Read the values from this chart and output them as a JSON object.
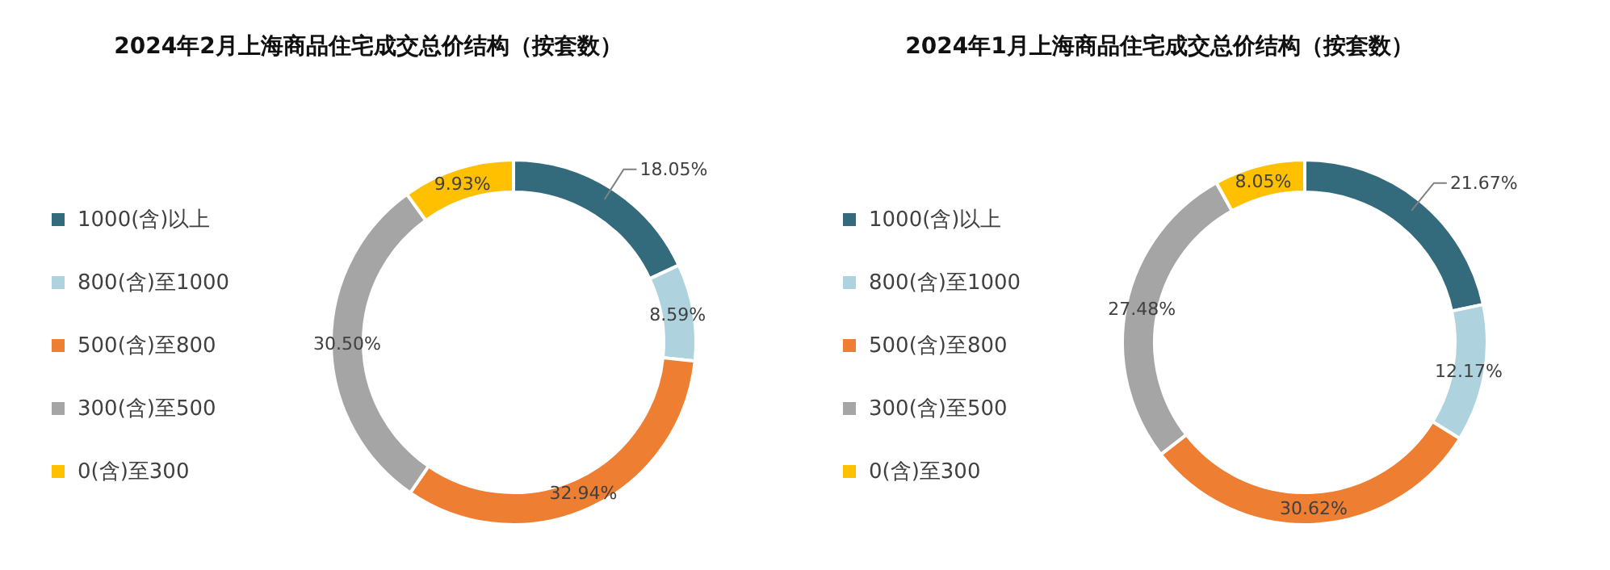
{
  "chart_data": [
    {
      "type": "donut",
      "title": "2024年2月上海商品住宅成交总价结构（按套数）",
      "categories": [
        "1000(含)以上",
        "800(含)至1000",
        "500(含)至800",
        "300(含)至500",
        "0(含)至300"
      ],
      "values": [
        18.05,
        8.59,
        32.94,
        30.5,
        9.93
      ],
      "colors": [
        "#336b7d",
        "#aed3df",
        "#ee7e32",
        "#a5a5a5",
        "#ffc000"
      ],
      "value_labels": [
        "18.05%",
        "8.59%",
        "32.94%",
        "30.50%",
        "9.93%"
      ],
      "legend": "left"
    },
    {
      "type": "donut",
      "title": "2024年1月上海商品住宅成交总价结构（按套数）",
      "categories": [
        "1000(含)以上",
        "800(含)至1000",
        "500(含)至800",
        "300(含)至500",
        "0(含)至300"
      ],
      "values": [
        21.67,
        12.17,
        30.62,
        27.48,
        8.05
      ],
      "colors": [
        "#336b7d",
        "#aed3df",
        "#ee7e32",
        "#a5a5a5",
        "#ffc000"
      ],
      "value_labels": [
        "21.67%",
        "12.17%",
        "30.62%",
        "27.48%",
        "8.05%"
      ],
      "legend": "left"
    }
  ]
}
